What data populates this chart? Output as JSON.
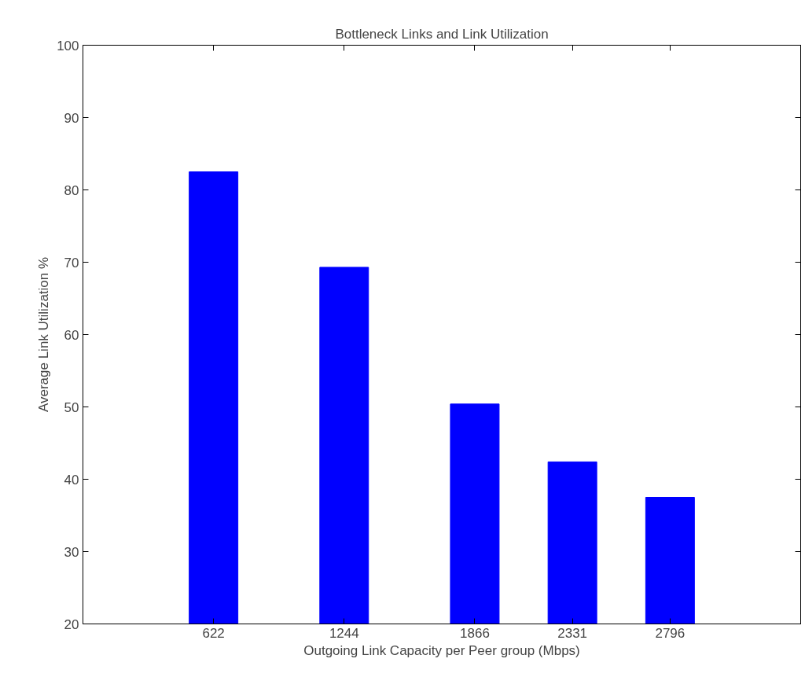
{
  "chart_data": {
    "type": "bar",
    "title": "Bottleneck Links and Link Utilization",
    "xlabel": "Outgoing Link Capacity per Peer group (Mbps)",
    "ylabel": "Average Link Utilization %",
    "x": [
      622,
      1244,
      1866,
      2331,
      2796
    ],
    "values": [
      82.5,
      69.3,
      50.4,
      42.4,
      37.5
    ],
    "color": "#0000ff",
    "xlim": [
      0,
      3418
    ],
    "xticks": [
      622,
      1244,
      1866,
      2331,
      2796
    ],
    "ylim": [
      20,
      100
    ],
    "yticks": [
      20,
      30,
      40,
      50,
      60,
      70,
      80,
      90,
      100
    ],
    "grid": false
  }
}
